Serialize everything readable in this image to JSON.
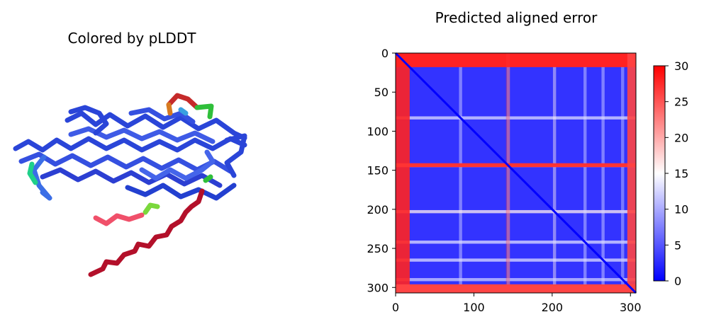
{
  "panels": {
    "left_title": "Colored by pLDDT",
    "right_title": "Predicted aligned error"
  },
  "colors": {
    "plddt_very_high": "#2743d6",
    "plddt_high": "#3d8be8",
    "plddt_mid": "#26c65a",
    "plddt_low": "#e8473c",
    "plddt_very_low": "#b3102a",
    "pae_low": "#0000ff",
    "pae_mid": "#ffffff",
    "pae_high": "#ff0000"
  },
  "chart_data": {
    "type": "heatmap",
    "title": "Predicted aligned error",
    "xlabel": "",
    "ylabel": "",
    "n_residues": 307,
    "xlim": [
      0,
      307
    ],
    "ylim": [
      307,
      0
    ],
    "x_ticks": [
      0,
      100,
      200,
      300
    ],
    "y_ticks": [
      0,
      50,
      100,
      150,
      200,
      250,
      300
    ],
    "colorbar": {
      "range": [
        0,
        30
      ],
      "ticks": [
        0,
        5,
        10,
        15,
        20,
        25,
        30
      ],
      "colormap": "bwr"
    },
    "high_error_bands": [
      {
        "from": 0,
        "to": 18,
        "error": 28
      },
      {
        "from": 141,
        "to": 146,
        "error": 27
      },
      {
        "from": 296,
        "to": 307,
        "error": 26
      }
    ],
    "moderate_error_bands": [
      {
        "at": 83,
        "error": 13
      },
      {
        "at": 144,
        "error": 12
      },
      {
        "at": 203,
        "error": 16
      },
      {
        "at": 242,
        "error": 13
      },
      {
        "at": 265,
        "error": 13
      },
      {
        "at": 290,
        "error": 12
      }
    ],
    "baseline_error": 3
  }
}
